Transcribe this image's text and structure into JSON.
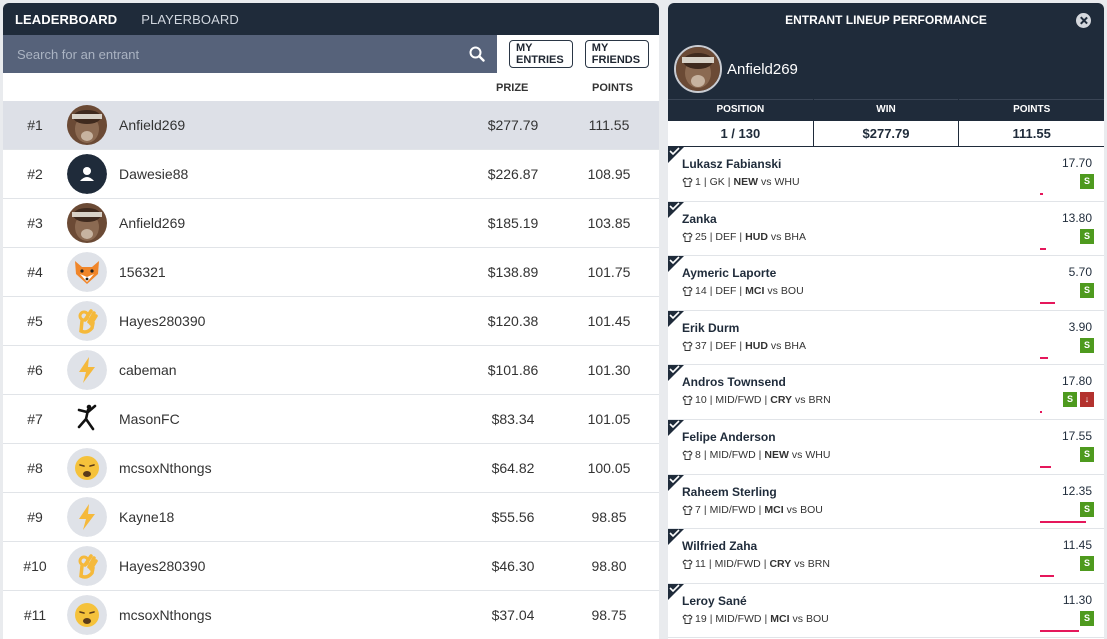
{
  "tabs": {
    "leaderboard": "LEADERBOARD",
    "playerboard": "PLAYERBOARD"
  },
  "search": {
    "placeholder": "Search for an entrant"
  },
  "buttons": {
    "my_entries": "MY ENTRIES",
    "my_friends": "MY FRIENDS"
  },
  "columns": {
    "prize": "PRIZE",
    "points": "POINTS"
  },
  "entries": [
    {
      "rank": "#1",
      "name": "Anfield269",
      "prize": "$277.79",
      "points": "111.55",
      "avatar": "photo-avatar"
    },
    {
      "rank": "#2",
      "name": "Dawesie88",
      "prize": "$226.87",
      "points": "108.95",
      "avatar": "default-user-avatar"
    },
    {
      "rank": "#3",
      "name": "Anfield269",
      "prize": "$185.19",
      "points": "103.85",
      "avatar": "photo-avatar"
    },
    {
      "rank": "#4",
      "name": "156321",
      "prize": "$138.89",
      "points": "101.75",
      "avatar": "fox-avatar"
    },
    {
      "rank": "#5",
      "name": "Hayes280390",
      "prize": "$120.38",
      "points": "101.45",
      "avatar": "ok-hand-avatar"
    },
    {
      "rank": "#6",
      "name": "cabeman",
      "prize": "$101.86",
      "points": "101.30",
      "avatar": "lightning-avatar"
    },
    {
      "rank": "#7",
      "name": "MasonFC",
      "prize": "$83.34",
      "points": "101.05",
      "avatar": "jumpman-avatar"
    },
    {
      "rank": "#8",
      "name": "mcsoxNthongs",
      "prize": "$64.82",
      "points": "100.05",
      "avatar": "weary-face-avatar"
    },
    {
      "rank": "#9",
      "name": "Kayne18",
      "prize": "$55.56",
      "points": "98.85",
      "avatar": "lightning-avatar"
    },
    {
      "rank": "#10",
      "name": "Hayes280390",
      "prize": "$46.30",
      "points": "98.80",
      "avatar": "ok-hand-avatar"
    },
    {
      "rank": "#11",
      "name": "mcsoxNthongs",
      "prize": "$37.04",
      "points": "98.75",
      "avatar": "weary-face-avatar"
    }
  ],
  "panel": {
    "title": "ENTRANT LINEUP PERFORMANCE",
    "name": "Anfield269",
    "position_label": "POSITION",
    "position": "1 / 130",
    "win_label": "WIN",
    "win": "$277.79",
    "points_label": "POINTS",
    "points": "111.55"
  },
  "players": [
    {
      "name": "Lukasz Fabianski",
      "num": "1",
      "pos": "GK",
      "team": "NEW",
      "vs": "vs",
      "opp": "WHU",
      "points": "17.70",
      "badges": [
        "S"
      ],
      "bar_pct": 0.05
    },
    {
      "name": "Zanka",
      "num": "25",
      "pos": "DEF",
      "team": "HUD",
      "vs": "vs",
      "opp": "BHA",
      "points": "13.80",
      "badges": [
        "S"
      ],
      "bar_pct": 0.12
    },
    {
      "name": "Aymeric Laporte",
      "num": "14",
      "pos": "DEF",
      "team": "MCI",
      "vs": "vs",
      "opp": "BOU",
      "points": "5.70",
      "badges": [
        "S"
      ],
      "bar_pct": 0.28
    },
    {
      "name": "Erik Durm",
      "num": "37",
      "pos": "DEF",
      "team": "HUD",
      "vs": "vs",
      "opp": "BHA",
      "points": "3.90",
      "badges": [
        "S"
      ],
      "bar_pct": 0.16
    },
    {
      "name": "Andros Townsend",
      "num": "10",
      "pos": "MID/FWD",
      "team": "CRY",
      "vs": "vs",
      "opp": "BRN",
      "points": "17.80",
      "badges": [
        "S",
        "down"
      ],
      "bar_pct": 0.04
    },
    {
      "name": "Felipe Anderson",
      "num": "8",
      "pos": "MID/FWD",
      "team": "NEW",
      "vs": "vs",
      "opp": "WHU",
      "points": "17.55",
      "badges": [
        "S"
      ],
      "bar_pct": 0.22
    },
    {
      "name": "Raheem Sterling",
      "num": "7",
      "pos": "MID/FWD",
      "team": "MCI",
      "vs": "vs",
      "opp": "BOU",
      "points": "12.35",
      "badges": [
        "S"
      ],
      "bar_pct": 0.88
    },
    {
      "name": "Wilfried Zaha",
      "num": "11",
      "pos": "MID/FWD",
      "team": "CRY",
      "vs": "vs",
      "opp": "BRN",
      "points": "11.45",
      "badges": [
        "S"
      ],
      "bar_pct": 0.26
    },
    {
      "name": "Leroy Sané",
      "num": "19",
      "pos": "MID/FWD",
      "team": "MCI",
      "vs": "vs",
      "opp": "BOU",
      "points": "11.30",
      "badges": [
        "S"
      ],
      "bar_pct": 0.75
    }
  ],
  "colors": {
    "navy": "#1f2b3a",
    "search_bg": "#56627a",
    "highlight": "#dde0e7",
    "badge_green": "#4e9a1e",
    "badge_red": "#b3322e",
    "bar_pink": "#e5175b"
  }
}
